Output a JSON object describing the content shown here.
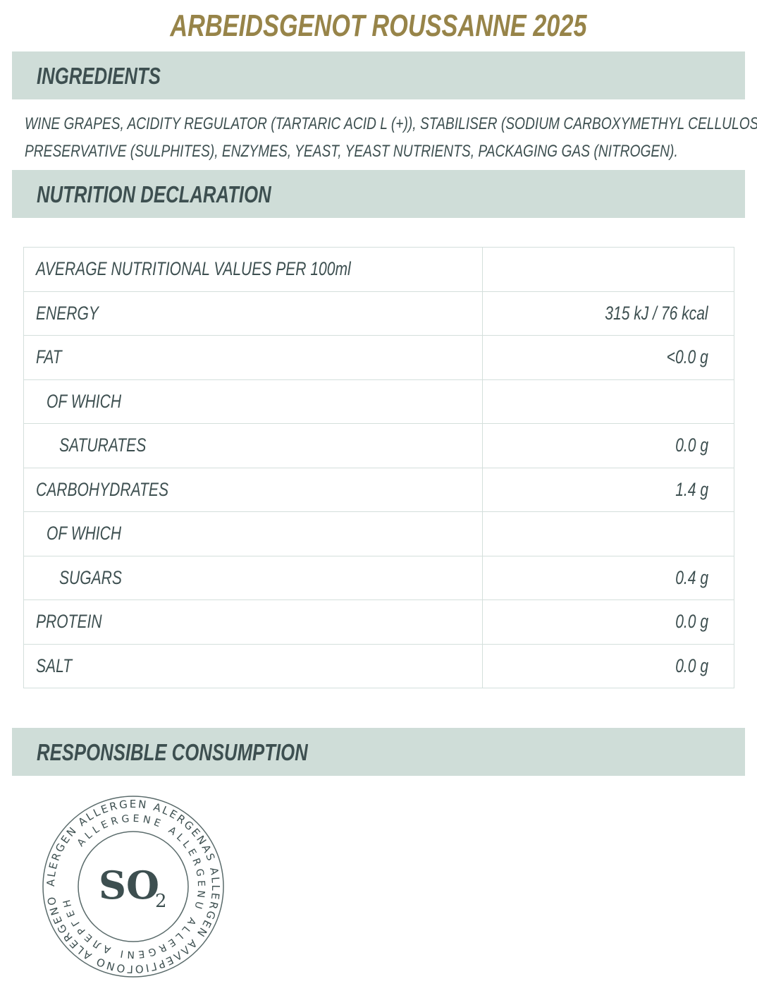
{
  "title": "ARBEIDSGENOT ROUSSANNE 2025",
  "colors": {
    "title": "#978449",
    "band": "#cfddd8",
    "text": "#3d4f50"
  },
  "ingredients": {
    "heading": "INGREDIENTS",
    "line1": "WINE GRAPES, ACIDITY REGULATOR (TARTARIC ACID L (+)), STABILISER (SODIUM CARBOXYMETHYL CELLULOSE),",
    "line2": "PRESERVATIVE (SULPHITES), ENZYMES, YEAST, YEAST NUTRIENTS, PACKAGING GAS (NITROGEN)."
  },
  "nutrition": {
    "heading": "NUTRITION DECLARATION",
    "rows": [
      {
        "label": "AVERAGE NUTRITIONAL VALUES PER 100ml",
        "value": ""
      },
      {
        "label": "ENERGY",
        "value": "315 kJ / 76 kcal"
      },
      {
        "label": "FAT",
        "value": "<0.0 g"
      },
      {
        "label": "OF WHICH",
        "value": ""
      },
      {
        "label": "SATURATES",
        "value": "0.0 g"
      },
      {
        "label": "CARBOHYDRATES",
        "value": "1.4 g"
      },
      {
        "label": "OF WHICH",
        "value": ""
      },
      {
        "label": "SUGARS",
        "value": "0.4 g"
      },
      {
        "label": "PROTEIN",
        "value": "0.0 g"
      },
      {
        "label": "SALT",
        "value": "0.0 g"
      }
    ]
  },
  "responsible": {
    "heading": "RESPONSIBLE CONSUMPTION"
  },
  "seal": {
    "center": "SO",
    "sub": "2",
    "outer": "ALERGEN ALLERGEN ALERGENAS ALLERGEN ΑΛΛΕΡΓΙΟΓΟΝΟ ALERGENO",
    "inner": "ALLERGENE ALLERGENU ALLERGENI АЛЕРГЕН"
  }
}
